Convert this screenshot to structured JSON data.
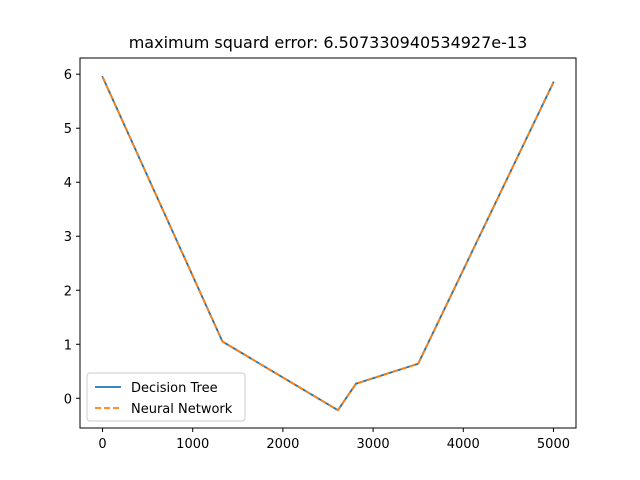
{
  "chart_data": {
    "type": "line",
    "title": "maximum squard error: 6.507330940534927e-13",
    "xlabel": "",
    "ylabel": "",
    "xlim": [
      -250,
      5250
    ],
    "ylim": [
      -0.55,
      6.3
    ],
    "x_ticks": [
      0,
      1000,
      2000,
      3000,
      4000,
      5000
    ],
    "y_ticks": [
      0,
      1,
      2,
      3,
      4,
      5,
      6
    ],
    "x_tick_labels": [
      "0",
      "1000",
      "2000",
      "3000",
      "4000",
      "5000"
    ],
    "y_tick_labels": [
      "0",
      "1",
      "2",
      "3",
      "4",
      "5",
      "6"
    ],
    "legend_position": "lower-left",
    "grid": false,
    "series": [
      {
        "name": "Decision Tree",
        "color": "#1f77b4",
        "style": "solid",
        "x": [
          0,
          1330,
          2610,
          2810,
          3500,
          5000
        ],
        "y": [
          5.95,
          1.05,
          -0.22,
          0.27,
          0.64,
          5.85
        ]
      },
      {
        "name": "Neural Network",
        "color": "#ff7f0e",
        "style": "dashed",
        "x": [
          0,
          1330,
          2610,
          2810,
          3500,
          5000
        ],
        "y": [
          5.95,
          1.05,
          -0.22,
          0.27,
          0.64,
          5.85
        ]
      }
    ]
  }
}
